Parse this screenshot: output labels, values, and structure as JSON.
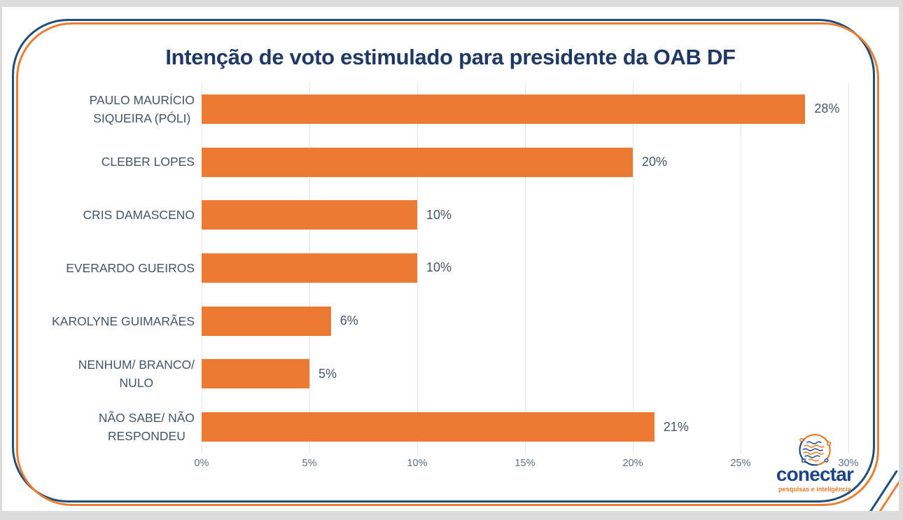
{
  "title": "Intenção de voto estimulado para presidente da OAB DF",
  "colors": {
    "page_bg": "#dcdcdc",
    "slide_bg": "#ffffff",
    "bar": "#ed7a33",
    "title_text": "#1f3864",
    "label_text": "#44546a",
    "tick_text": "#5f7082",
    "gridline": "#e3e3e3",
    "frame_blue": "#1f4e79",
    "frame_orange": "#ed7d31",
    "logo_blue": "#1c4587",
    "logo_orange": "#e87722"
  },
  "chart_data": {
    "type": "bar",
    "orientation": "horizontal",
    "title": "Intenção de voto estimulado para presidente da OAB DF",
    "categories": [
      "PAULO MAURÍCIO\nSIQUEIRA (PÓLI)",
      "CLEBER LOPES",
      "CRIS DAMASCENO",
      "EVERARDO GUEIROS",
      "KAROLYNE GUIMARÃES",
      "NENHUM/ BRANCO/\nNULO",
      "NÃO SABE/ NÃO\nRESPONDEU"
    ],
    "values": [
      28,
      20,
      10,
      10,
      6,
      5,
      21
    ],
    "value_labels": [
      "28%",
      "20%",
      "10%",
      "10%",
      "6%",
      "5%",
      "21%"
    ],
    "tick_values": [
      0,
      5,
      10,
      15,
      20,
      25,
      30
    ],
    "tick_labels": [
      "0%",
      "5%",
      "10%",
      "15%",
      "20%",
      "25%",
      "30%"
    ],
    "xlim": [
      0,
      30
    ],
    "xlabel": "",
    "ylabel": "",
    "grid": true,
    "legend": false,
    "bar_color": "#ed7a33"
  },
  "logo": {
    "brand": "conectar",
    "tagline": "pesquisas e inteligência"
  }
}
